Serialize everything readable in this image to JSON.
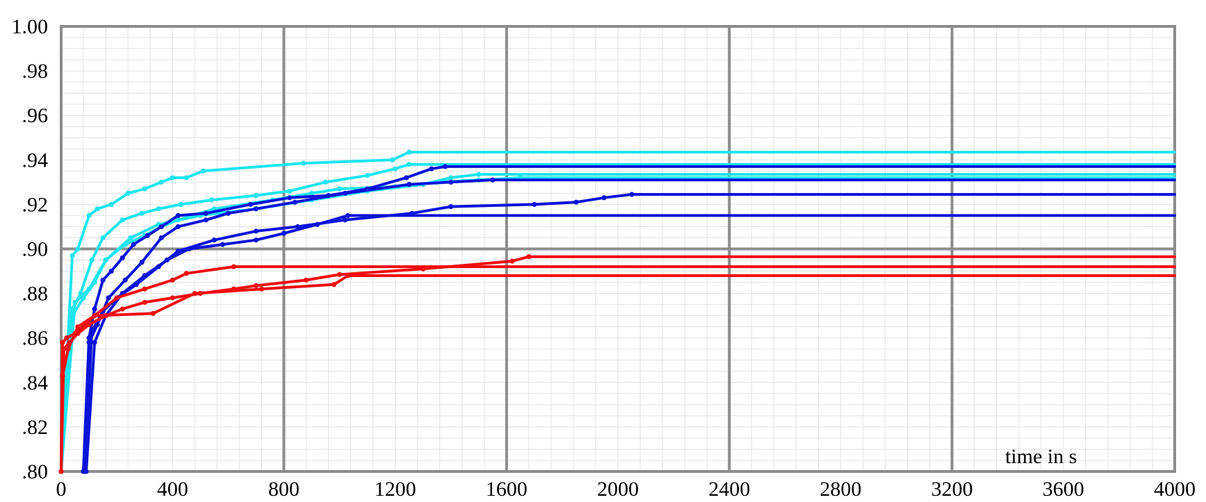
{
  "chart_data": {
    "type": "line",
    "title": "",
    "xlabel": "time in s",
    "ylabel": "",
    "xlim": [
      0,
      4000
    ],
    "ylim": [
      0.8,
      1.0
    ],
    "x_ticks": [
      0,
      400,
      800,
      1200,
      1600,
      2000,
      2400,
      2800,
      3200,
      3600,
      4000
    ],
    "x_tick_labels": [
      "0",
      "400",
      "800",
      "1200",
      "1600",
      "2000",
      "2400",
      "2800",
      "3200",
      "3600",
      "4000"
    ],
    "y_ticks": [
      0.8,
      0.82,
      0.84,
      0.86,
      0.88,
      0.9,
      0.92,
      0.94,
      0.96,
      0.98,
      1.0
    ],
    "y_tick_labels": [
      ".80",
      ".82",
      ".84",
      ".86",
      ".88",
      ".90",
      ".92",
      ".94",
      ".96",
      ".98",
      "1.00"
    ],
    "major_grid_x": [
      800,
      1600,
      2400,
      3200,
      4000
    ],
    "major_grid_y": [
      0.9,
      1.0
    ],
    "minor_grid": true,
    "legend": "none",
    "colors": {
      "cyan": "#1fe5ef",
      "blue": "#0a14d9",
      "red": "#f00d0d",
      "grid_major": "#8c8c8c",
      "grid_minor": "#e2e2e2"
    },
    "series": [
      {
        "color": "cyan",
        "x": [
          0,
          40,
          60,
          100,
          130,
          180,
          240,
          300,
          360,
          400,
          450,
          510,
          870,
          1190,
          1250,
          4000
        ],
        "y": [
          0.8,
          0.897,
          0.9,
          0.915,
          0.918,
          0.92,
          0.925,
          0.927,
          0.93,
          0.932,
          0.932,
          0.935,
          0.9385,
          0.94,
          0.9435,
          0.9435
        ]
      },
      {
        "color": "cyan",
        "x": [
          0,
          40,
          70,
          110,
          150,
          220,
          290,
          350,
          430,
          540,
          700,
          820,
          950,
          1100,
          1200,
          1250,
          4000
        ],
        "y": [
          0.8,
          0.873,
          0.88,
          0.895,
          0.905,
          0.913,
          0.916,
          0.918,
          0.92,
          0.922,
          0.924,
          0.926,
          0.93,
          0.933,
          0.936,
          0.938,
          0.938
        ]
      },
      {
        "color": "cyan",
        "x": [
          0,
          40,
          80,
          120,
          160,
          230,
          300,
          360,
          420,
          550,
          760,
          900,
          1000,
          1200,
          1350,
          1500,
          1650,
          4000
        ],
        "y": [
          0.8,
          0.87,
          0.878,
          0.885,
          0.895,
          0.902,
          0.906,
          0.91,
          0.913,
          0.918,
          0.922,
          0.925,
          0.927,
          0.928,
          0.93,
          0.931,
          0.932,
          0.932
        ]
      },
      {
        "color": "cyan",
        "x": [
          0,
          50,
          100,
          160,
          250,
          350,
          500,
          700,
          900,
          1100,
          1300,
          1400,
          1500,
          4000
        ],
        "y": [
          0.8,
          0.876,
          0.882,
          0.895,
          0.905,
          0.911,
          0.915,
          0.918,
          0.922,
          0.926,
          0.929,
          0.932,
          0.9335,
          0.9335
        ]
      },
      {
        "color": "blue",
        "x": [
          80,
          100,
          120,
          150,
          180,
          220,
          260,
          310,
          360,
          420,
          520,
          680,
          820,
          960,
          1100,
          1240,
          1330,
          1380,
          4000
        ],
        "y": [
          0.8,
          0.86,
          0.873,
          0.886,
          0.89,
          0.896,
          0.902,
          0.906,
          0.91,
          0.915,
          0.916,
          0.92,
          0.923,
          0.924,
          0.927,
          0.932,
          0.936,
          0.937,
          0.937
        ]
      },
      {
        "color": "blue",
        "x": [
          80,
          100,
          130,
          170,
          230,
          290,
          360,
          420,
          520,
          600,
          700,
          840,
          1020,
          1250,
          1400,
          1550,
          4000
        ],
        "y": [
          0.8,
          0.858,
          0.866,
          0.878,
          0.886,
          0.894,
          0.905,
          0.91,
          0.913,
          0.916,
          0.918,
          0.921,
          0.925,
          0.929,
          0.93,
          0.931,
          0.931
        ]
      },
      {
        "color": "blue",
        "x": [
          85,
          110,
          150,
          200,
          270,
          350,
          420,
          550,
          700,
          850,
          1020,
          1260,
          1400,
          1700,
          1850,
          1950,
          2050,
          4000
        ],
        "y": [
          0.8,
          0.863,
          0.872,
          0.878,
          0.884,
          0.892,
          0.899,
          0.904,
          0.908,
          0.91,
          0.913,
          0.916,
          0.919,
          0.92,
          0.921,
          0.923,
          0.9245,
          0.9245
        ]
      },
      {
        "color": "blue",
        "x": [
          90,
          120,
          160,
          220,
          300,
          380,
          460,
          580,
          700,
          800,
          920,
          1030,
          4000
        ],
        "y": [
          0.8,
          0.858,
          0.87,
          0.88,
          0.888,
          0.895,
          0.9,
          0.902,
          0.904,
          0.907,
          0.911,
          0.915,
          0.915
        ]
      },
      {
        "color": "red",
        "x": [
          0,
          5,
          20,
          50,
          80,
          120,
          200,
          300,
          400,
          450,
          620,
          4000
        ],
        "y": [
          0.8,
          0.858,
          0.86,
          0.862,
          0.865,
          0.87,
          0.878,
          0.882,
          0.886,
          0.889,
          0.892,
          0.892
        ]
      },
      {
        "color": "red",
        "x": [
          0,
          10,
          30,
          60,
          100,
          160,
          220,
          300,
          400,
          500,
          620,
          700,
          880,
          1000,
          1300,
          1620,
          1680,
          4000
        ],
        "y": [
          0.8,
          0.855,
          0.858,
          0.862,
          0.866,
          0.87,
          0.873,
          0.876,
          0.878,
          0.88,
          0.882,
          0.8835,
          0.886,
          0.8885,
          0.891,
          0.8945,
          0.8965,
          0.8965
        ]
      },
      {
        "color": "red",
        "x": [
          0,
          5,
          25,
          60,
          120,
          330,
          480,
          720,
          980,
          1030,
          4000
        ],
        "y": [
          0.8,
          0.843,
          0.855,
          0.865,
          0.87,
          0.871,
          0.88,
          0.882,
          0.884,
          0.888,
          0.888
        ]
      }
    ]
  }
}
